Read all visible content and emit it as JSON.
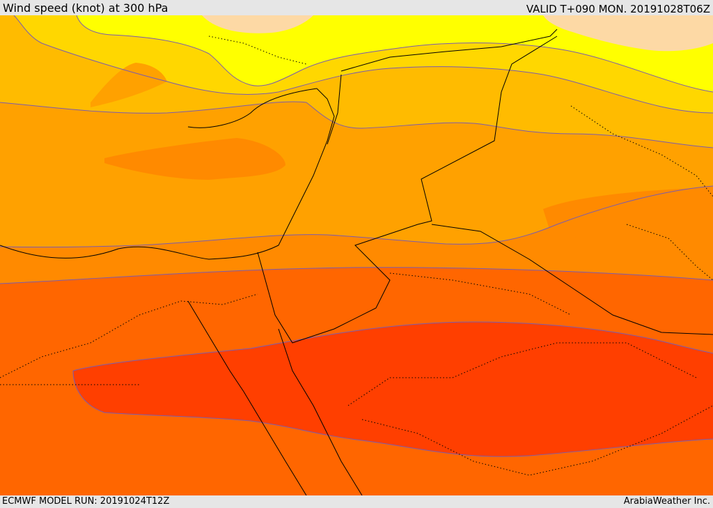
{
  "header": {
    "title": "Wind speed (knot) at 300 hPa",
    "valid": "VALID T+090 MON. 20191028T06Z"
  },
  "footer": {
    "model_run": "ECMWF MODEL RUN: 20191024T12Z",
    "credit": "ArabiaWeather Inc."
  },
  "colors": {
    "cream": "#fdd9a5",
    "yellow": "#ffff00",
    "yellow_orange": "#ffd700",
    "light_orange": "#ffbb00",
    "orange": "#ffa100",
    "dark_orange": "#ff8a00",
    "red_orange": "#ff6600",
    "red": "#ff3f00",
    "coast": "#000000",
    "contour": "#7a5cb0"
  }
}
